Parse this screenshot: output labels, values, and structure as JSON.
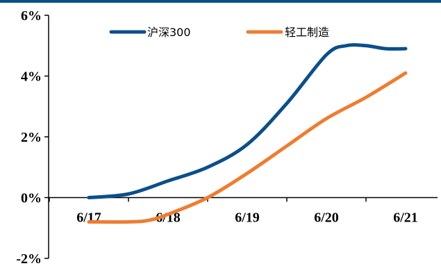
{
  "chart_data": {
    "type": "line",
    "categories": [
      "6/17",
      "6/18",
      "6/19",
      "6/20",
      "6/21"
    ],
    "y_tick_labels": [
      "6%",
      "4%",
      "2%",
      "0%",
      "-2%"
    ],
    "y_ticks": [
      6,
      4,
      2,
      0,
      -2
    ],
    "ylim": [
      -2,
      6
    ],
    "legend_position": "top",
    "grid": false,
    "series": [
      {
        "name": "沪深300",
        "color": "#0b4f8a",
        "x": [
          0,
          0.5,
          1,
          1.5,
          2,
          2.5,
          3,
          3.25,
          3.5,
          3.75,
          4
        ],
        "values": [
          0.0,
          0.12,
          0.55,
          1.0,
          1.75,
          3.1,
          4.7,
          5.0,
          5.0,
          4.9,
          4.9
        ]
      },
      {
        "name": "轻工制造",
        "color": "#ee7d31",
        "x": [
          0,
          0.5,
          0.75,
          1,
          1.5,
          2,
          2.5,
          3,
          3.5,
          4
        ],
        "values": [
          -0.8,
          -0.8,
          -0.75,
          -0.55,
          0.0,
          0.8,
          1.7,
          2.6,
          3.3,
          4.1
        ]
      }
    ]
  }
}
